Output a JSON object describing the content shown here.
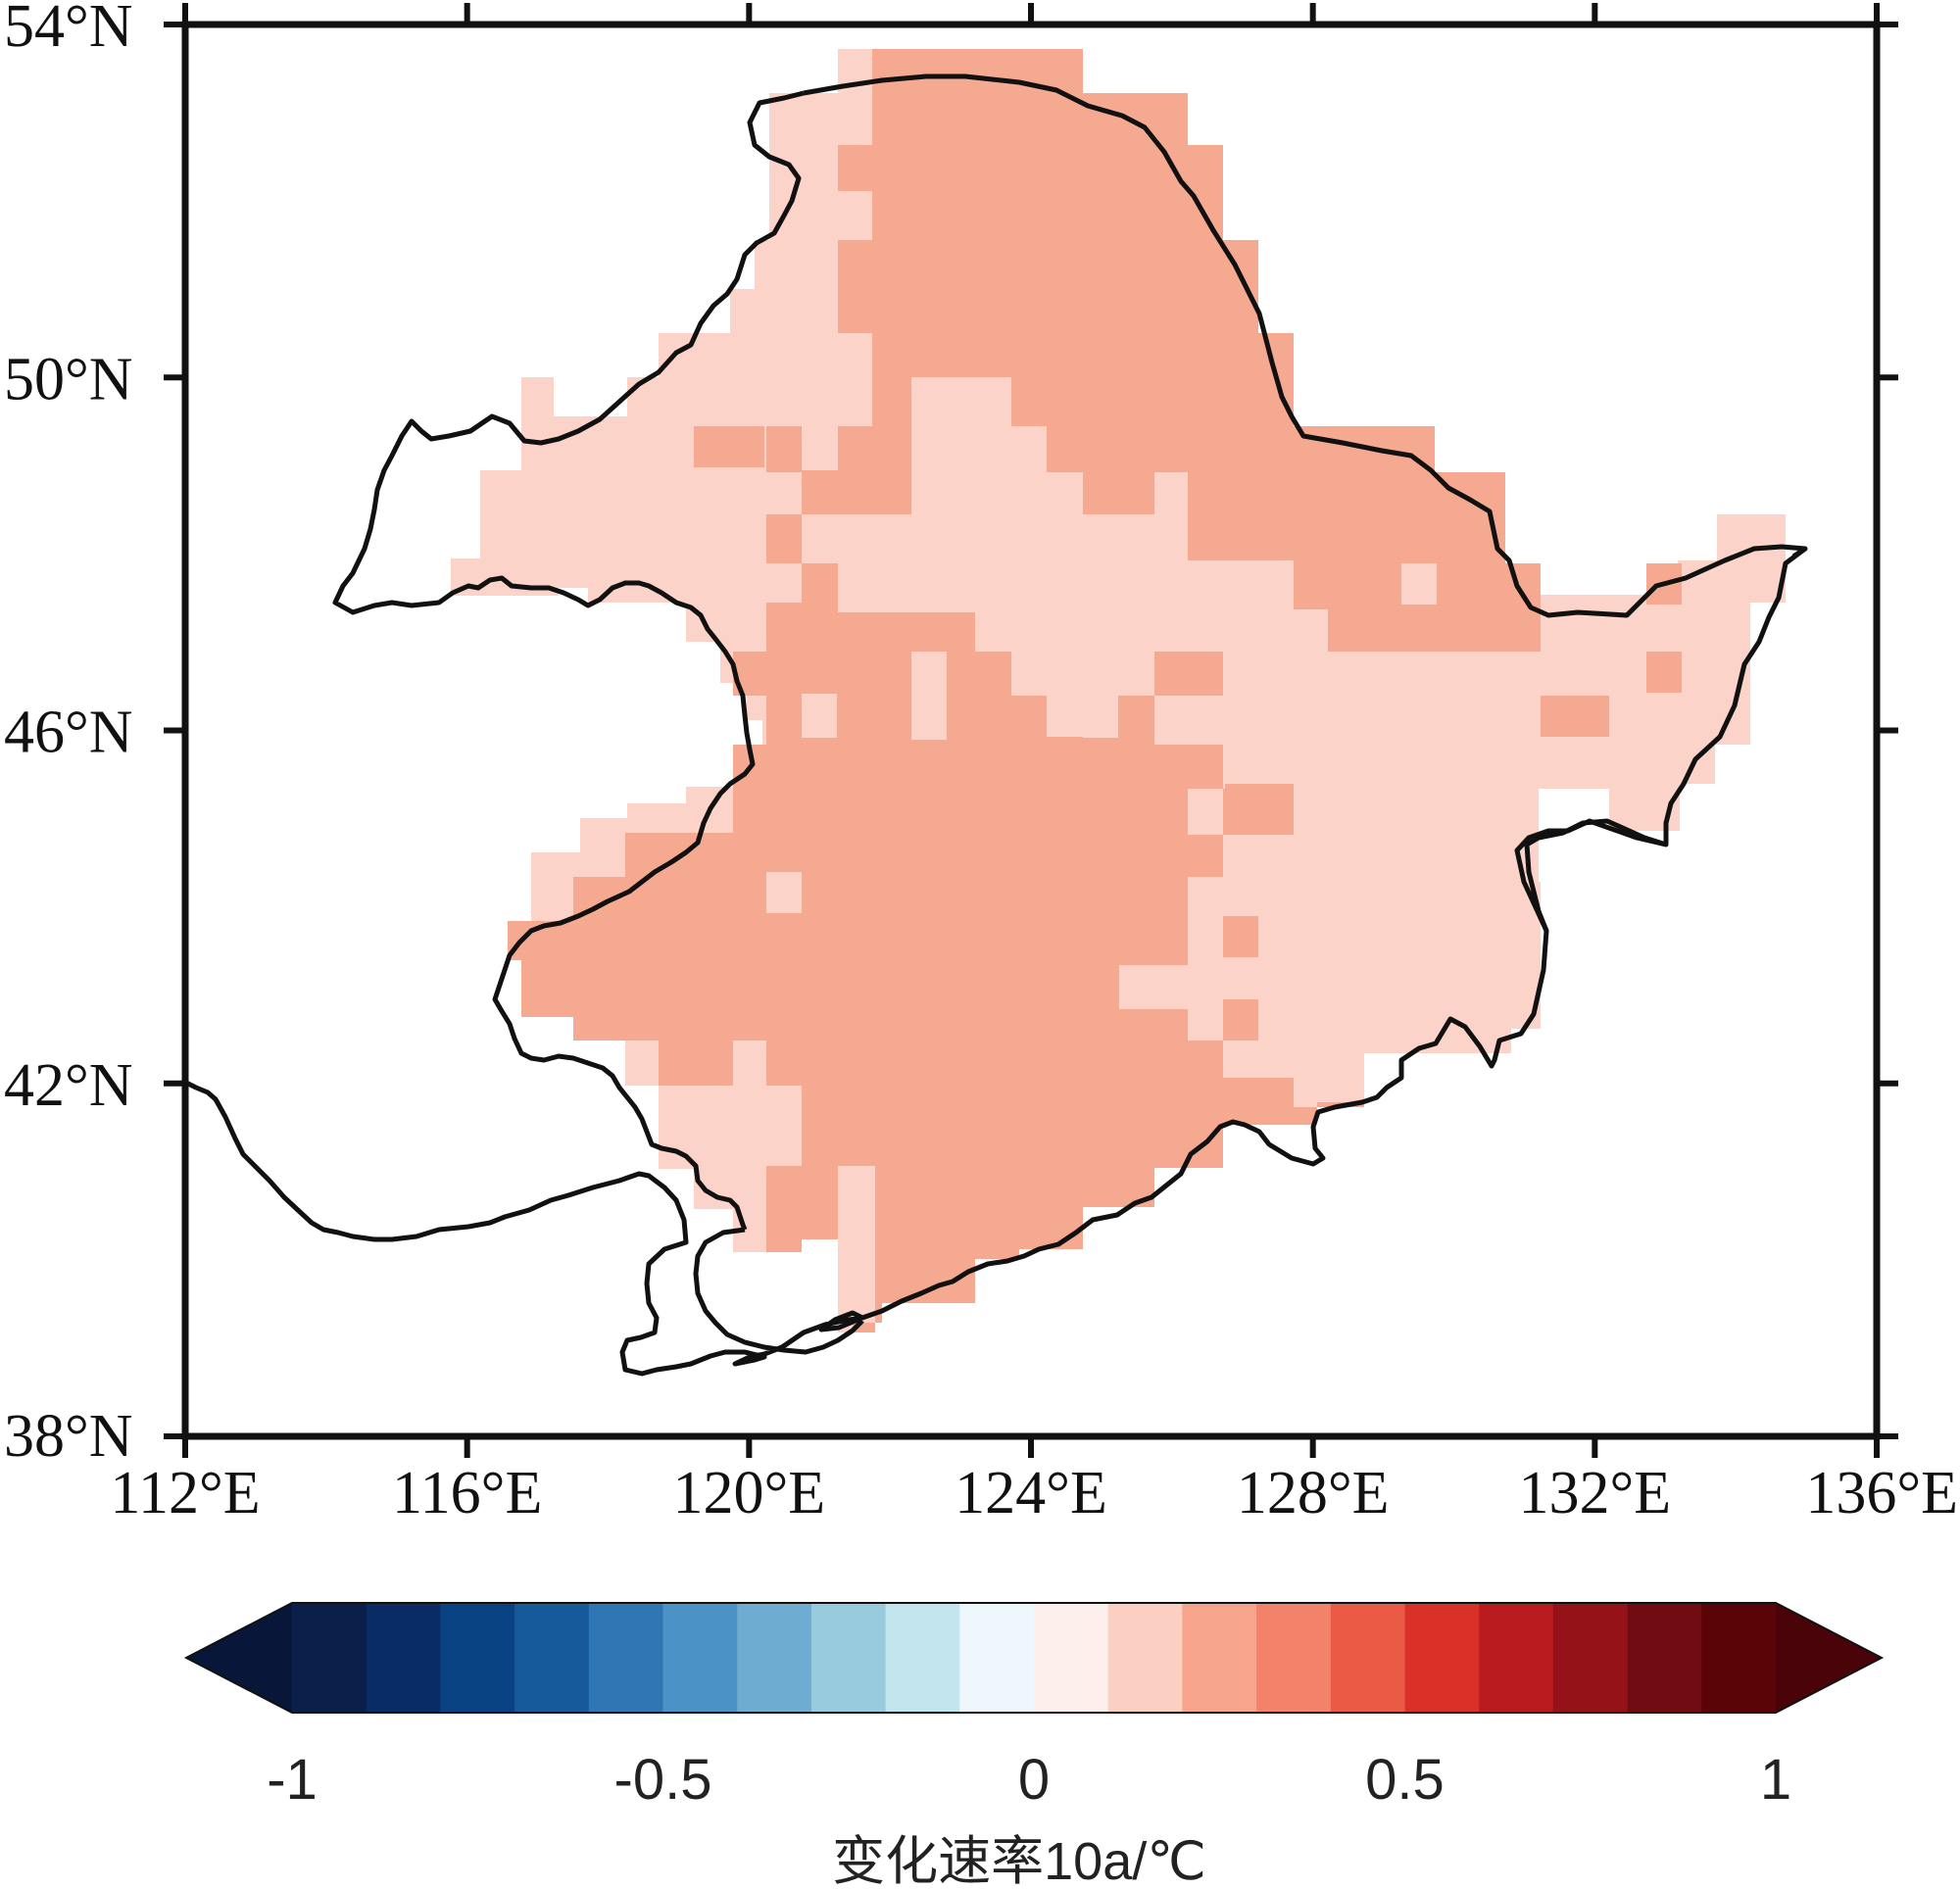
{
  "map": {
    "lon_range": [
      112,
      136
    ],
    "lat_range": [
      38,
      54
    ],
    "lon_ticks": [
      {
        "value": 112,
        "label": "112°E"
      },
      {
        "value": 116,
        "label": "116°E"
      },
      {
        "value": 120,
        "label": "120°E"
      },
      {
        "value": 124,
        "label": "124°E"
      },
      {
        "value": 128,
        "label": "128°E"
      },
      {
        "value": 132,
        "label": "132°E"
      },
      {
        "value": 136,
        "label": "136°E"
      }
    ],
    "lat_ticks": [
      {
        "value": 54,
        "label": "54°N"
      },
      {
        "value": 50,
        "label": "50°N"
      },
      {
        "value": 46,
        "label": "46°N"
      },
      {
        "value": 42,
        "label": "42°N"
      },
      {
        "value": 38,
        "label": "38°N"
      }
    ],
    "region_fill_colors": {
      "low_trend": "#fcd3c8",
      "high_trend": "#f6a991"
    },
    "outline_color": "#111111"
  },
  "colorbar": {
    "levels": [
      -1,
      -0.9,
      -0.8,
      -0.7,
      -0.6,
      -0.5,
      -0.4,
      -0.3,
      -0.2,
      -0.1,
      0,
      0.1,
      0.2,
      0.3,
      0.4,
      0.5,
      0.6,
      0.7,
      0.8,
      0.9,
      1
    ],
    "colors": [
      "#0b1f4b",
      "#0a2c66",
      "#0a4384",
      "#165a9c",
      "#2f77b4",
      "#4b92c6",
      "#6eacd2",
      "#97cbdd",
      "#c3e5ee",
      "#eef8fc",
      "#fcefec",
      "#fbd0c2",
      "#f6a58c",
      "#f2826a",
      "#ea5a45",
      "#d93128",
      "#b91b1e",
      "#961219",
      "#700c12",
      "#5a0408"
    ],
    "under_color": "#08163a",
    "over_color": "#4a0308",
    "tick_labels": [
      {
        "value": -1,
        "label": "-1"
      },
      {
        "value": -0.5,
        "label": "-0.5"
      },
      {
        "value": 0,
        "label": "0"
      },
      {
        "value": 0.5,
        "label": "0.5"
      },
      {
        "value": 1,
        "label": "1"
      }
    ],
    "title": "变化速率10a/℃"
  }
}
